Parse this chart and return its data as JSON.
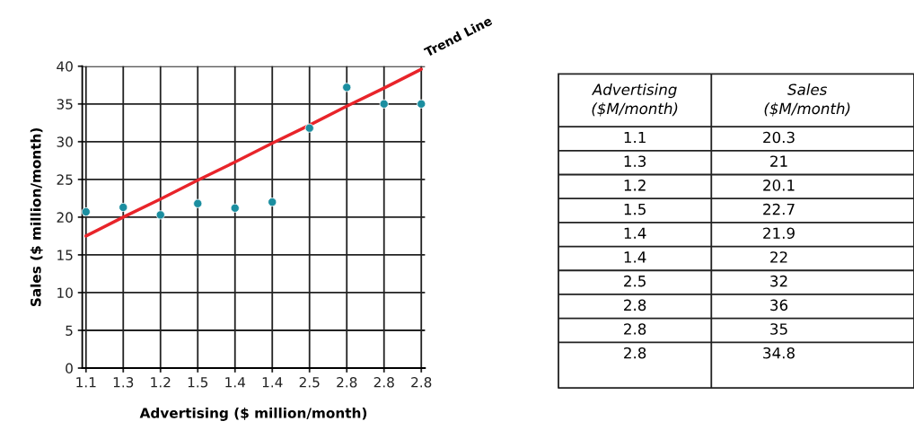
{
  "chart_data": [
    {
      "type": "scatter",
      "xlabel": "Advertising ($ million/month)",
      "ylabel": "Sales ($ million/month)",
      "categories": [
        "1.1",
        "1.3",
        "1.2",
        "1.5",
        "1.4",
        "1.4",
        "2.5",
        "2.8",
        "2.8",
        "2.8"
      ],
      "series": [
        {
          "color": "#1b8ea0",
          "marker": "circle",
          "values": [
            20.7,
            21.3,
            20.3,
            21.8,
            21.2,
            22.0,
            31.8,
            37.2,
            35.0,
            35.0
          ]
        },
        {
          "type": "line",
          "name": "Trend Line",
          "color": "#e8242a",
          "marker": "none",
          "values": [
            17.5,
            20.0,
            22.4,
            24.9,
            27.3,
            29.8,
            32.2,
            34.7,
            37.1,
            39.6
          ]
        }
      ],
      "ylim": [
        0,
        40
      ],
      "yticks": [
        0,
        5,
        10,
        15,
        20,
        25,
        30,
        35,
        40
      ],
      "grid": true
    },
    {
      "type": "other",
      "annotations": [
        "Advertising\n($M/month)",
        "Sales\n($M/month)"
      ],
      "categories": [
        "1.1",
        "1.3",
        "1.2",
        "1.5",
        "1.4",
        "1.4",
        "2.5",
        "2.8",
        "2.8",
        "2.8"
      ],
      "values": [
        20.3,
        21,
        20.1,
        22.7,
        21.9,
        22,
        32,
        36,
        35,
        34.8
      ],
      "data_labels": true
    }
  ]
}
